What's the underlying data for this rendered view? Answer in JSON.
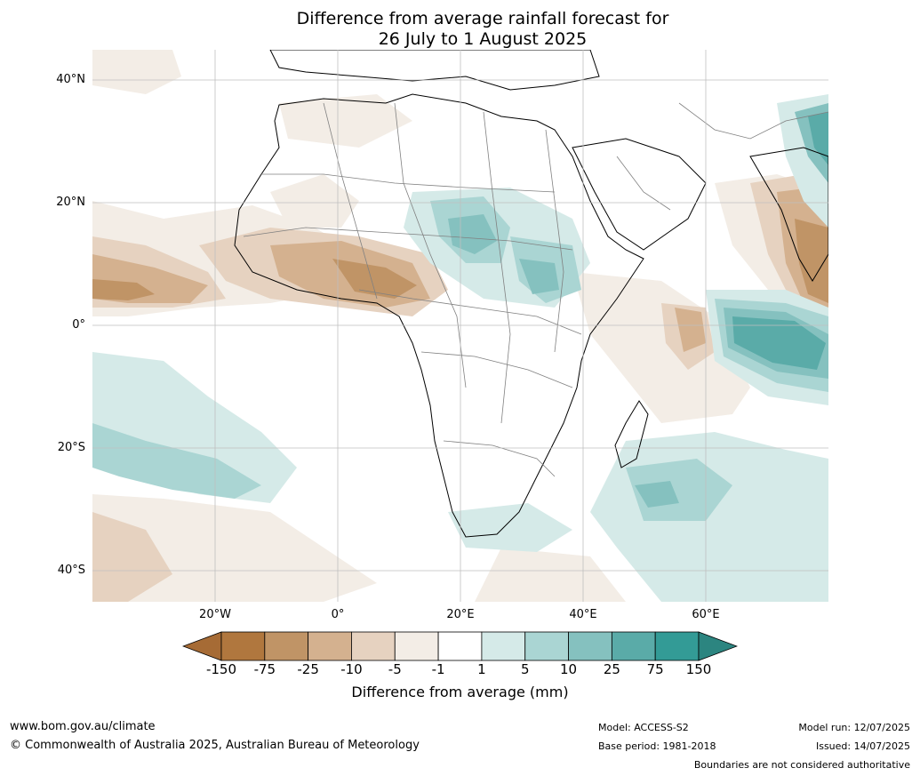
{
  "title_line1": "Difference from average rainfall forecast for",
  "title_line2": "26 July to 1 August 2025",
  "map": {
    "latitude_labels": [
      "40°N",
      "20°N",
      "0°",
      "20°S",
      "40°S"
    ],
    "longitude_labels": [
      "20°W",
      "0°",
      "20°E",
      "40°E",
      "60°E"
    ],
    "colors": {
      "ocean": "#ffffff",
      "coast": "#000000",
      "borders": "#808080",
      "gridlines": "#bfbfbf"
    }
  },
  "legend": {
    "title": "Difference from average (mm)",
    "tick_labels": [
      "-150",
      "-75",
      "-25",
      "-10",
      "-5",
      "-1",
      "1",
      "5",
      "10",
      "25",
      "75",
      "150"
    ],
    "colors": [
      "#a66b35",
      "#b0773e",
      "#c09466",
      "#d4b18f",
      "#e6d2c0",
      "#f3ede6",
      "#ffffff",
      "#d5eae8",
      "#aad5d3",
      "#85c1bf",
      "#5aaba8",
      "#339b96",
      "#2c8580"
    ]
  },
  "footer": {
    "website": "www.bom.gov.au/climate",
    "copyright": "© Commonwealth of Australia 2025, Australian Bureau of Meteorology",
    "model": "Model: ACCESS-S2",
    "base_period": "Base period: 1981-2018",
    "model_run": "Model run: 12/07/2025",
    "issued": "Issued: 14/07/2025",
    "disclaimer": "Boundaries are not considered authoritative"
  }
}
